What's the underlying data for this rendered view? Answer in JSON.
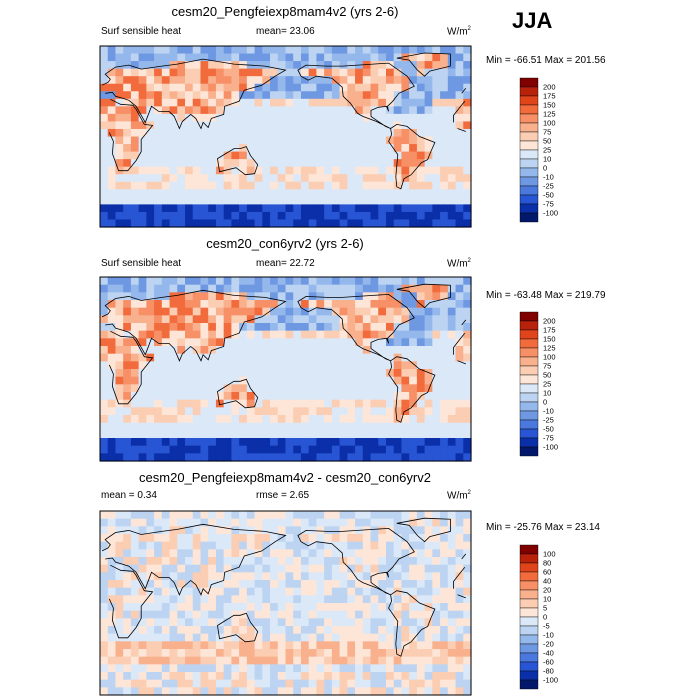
{
  "season": "JJA",
  "chart_data": [
    {
      "type": "heatmap",
      "title": "cesm20_Pengfeiexp8mam4v2 (yrs 2-6)",
      "left_label": "Surf sensible heat",
      "stat_text": "mean=  23.06",
      "units": "W/m",
      "units_sup": "2",
      "minmax": "Min = -66.51 Max = 201.56",
      "levels": [
        "200",
        "175",
        "150",
        "125",
        "100",
        "75",
        "50",
        "25",
        "10",
        "0",
        "-10",
        "-25",
        "-50",
        "-75",
        "-100"
      ],
      "colors": [
        "#800000",
        "#b8210a",
        "#e0441b",
        "#f26b3c",
        "#f79066",
        "#f9b08d",
        "#fbcdb2",
        "#fde6d8",
        "#dbe8f8",
        "#bcd4f2",
        "#95b8ec",
        "#6f98e3",
        "#4a78dc",
        "#2755d3",
        "#0b2fa8",
        "#02196b"
      ],
      "min": -66.51,
      "max": 201.56,
      "mean": 23.06
    },
    {
      "type": "heatmap",
      "title": "cesm20_con6yrv2 (yrs 2-6)",
      "left_label": "Surf sensible heat",
      "stat_text": "mean=  22.72",
      "units": "W/m",
      "units_sup": "2",
      "minmax": "Min = -63.48 Max = 219.79",
      "levels": [
        "200",
        "175",
        "150",
        "125",
        "100",
        "75",
        "50",
        "25",
        "10",
        "0",
        "-10",
        "-25",
        "-50",
        "-75",
        "-100"
      ],
      "colors": [
        "#800000",
        "#b8210a",
        "#e0441b",
        "#f26b3c",
        "#f79066",
        "#f9b08d",
        "#fbcdb2",
        "#fde6d8",
        "#dbe8f8",
        "#bcd4f2",
        "#95b8ec",
        "#6f98e3",
        "#4a78dc",
        "#2755d3",
        "#0b2fa8",
        "#02196b"
      ],
      "min": -63.48,
      "max": 219.79,
      "mean": 22.72
    },
    {
      "type": "heatmap",
      "title": "cesm20_Pengfeiexp8mam4v2 - cesm20_con6yrv2",
      "left_label": "mean =   0.34",
      "stat_text": "rmse =   2.65",
      "units": "W/m",
      "units_sup": "2",
      "minmax": "Min = -25.76 Max =  23.14",
      "levels": [
        "100",
        "80",
        "60",
        "40",
        "20",
        "10",
        "5",
        "0",
        "-5",
        "-10",
        "-20",
        "-40",
        "-60",
        "-80",
        "-100"
      ],
      "colors": [
        "#800000",
        "#b8210a",
        "#e0441b",
        "#f26b3c",
        "#f79066",
        "#f9b08d",
        "#fbcdb2",
        "#fde6d8",
        "#dbe8f8",
        "#bcd4f2",
        "#95b8ec",
        "#6f98e3",
        "#4a78dc",
        "#2755d3",
        "#0b2fa8",
        "#02196b"
      ],
      "min": -25.76,
      "max": 23.14,
      "mean": 0.34,
      "rmse": 2.65
    }
  ]
}
